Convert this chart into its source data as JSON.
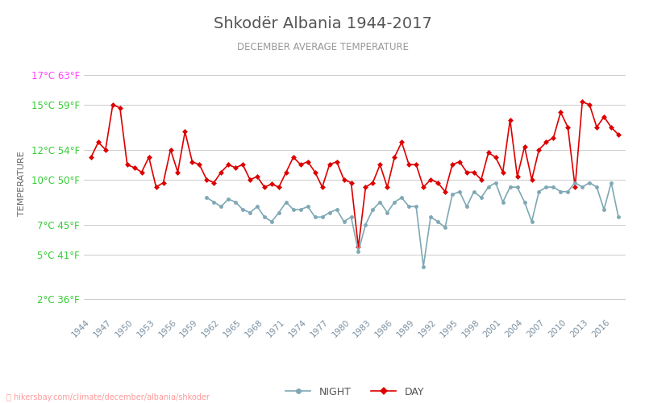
{
  "title": "Shkodër Albania 1944-2017",
  "subtitle": "DECEMBER AVERAGE TEMPERATURE",
  "xlabel": "",
  "ylabel": "TEMPERATURE",
  "watermark": "hikersbay.com/climate/december/albania/shkoder",
  "legend_night": "NIGHT",
  "legend_day": "DAY",
  "years": [
    1944,
    1945,
    1946,
    1947,
    1948,
    1949,
    1950,
    1951,
    1952,
    1953,
    1954,
    1955,
    1956,
    1957,
    1958,
    1959,
    1960,
    1961,
    1962,
    1963,
    1964,
    1965,
    1966,
    1967,
    1968,
    1969,
    1970,
    1971,
    1972,
    1973,
    1974,
    1975,
    1976,
    1977,
    1978,
    1979,
    1980,
    1981,
    1982,
    1983,
    1984,
    1985,
    1986,
    1987,
    1988,
    1989,
    1990,
    1991,
    1992,
    1993,
    1994,
    1995,
    1996,
    1997,
    1998,
    1999,
    2000,
    2001,
    2002,
    2003,
    2004,
    2005,
    2006,
    2007,
    2008,
    2009,
    2010,
    2011,
    2012,
    2013,
    2014,
    2015,
    2016,
    2017
  ],
  "day": [
    11.5,
    12.5,
    12.0,
    15.0,
    14.8,
    11.0,
    10.8,
    10.5,
    11.5,
    9.5,
    9.8,
    12.0,
    10.5,
    13.2,
    11.2,
    11.0,
    10.0,
    9.8,
    10.5,
    11.0,
    10.8,
    11.0,
    10.0,
    10.2,
    9.5,
    9.7,
    9.5,
    10.5,
    11.5,
    11.0,
    11.2,
    10.5,
    9.5,
    11.0,
    11.2,
    10.0,
    9.8,
    5.5,
    9.5,
    9.8,
    11.0,
    9.5,
    11.5,
    12.5,
    11.0,
    11.0,
    9.5,
    10.0,
    9.8,
    9.2,
    11.0,
    11.2,
    10.5,
    10.5,
    10.0,
    11.8,
    11.5,
    10.5,
    14.0,
    10.2,
    12.2,
    10.0,
    12.0,
    12.5,
    12.8,
    14.5,
    13.5,
    9.5,
    15.2,
    15.0,
    13.5,
    14.2,
    13.5,
    13.0
  ],
  "night": [
    null,
    null,
    null,
    null,
    null,
    null,
    null,
    null,
    null,
    null,
    null,
    null,
    null,
    null,
    null,
    null,
    8.8,
    8.5,
    8.2,
    8.7,
    8.5,
    8.0,
    7.8,
    8.2,
    7.5,
    7.2,
    7.8,
    8.5,
    8.0,
    8.0,
    8.2,
    7.5,
    7.5,
    7.8,
    8.0,
    7.2,
    7.5,
    5.2,
    7.0,
    8.0,
    8.5,
    7.8,
    8.5,
    8.8,
    8.2,
    8.2,
    4.2,
    7.5,
    7.2,
    6.8,
    9.0,
    9.2,
    8.2,
    9.2,
    8.8,
    9.5,
    9.8,
    8.5,
    9.5,
    9.5,
    8.5,
    7.2,
    9.2,
    9.5,
    9.5,
    9.2,
    9.2,
    9.8,
    9.5,
    9.8,
    9.5,
    8.0,
    9.8,
    7.5
  ],
  "yticks_celsius": [
    2,
    5,
    7,
    10,
    12,
    15,
    17
  ],
  "yticks_fahrenheit": [
    36,
    41,
    45,
    50,
    54,
    59,
    63
  ],
  "ymin": 1.0,
  "ymax": 18.5,
  "day_color": "#dd0000",
  "night_color": "#7fa8b5",
  "title_color": "#555555",
  "subtitle_color": "#999999",
  "ylabel_color": "#666666",
  "tick_label_color": "#33cc33",
  "top_tick_color": "#ff44ff",
  "grid_color": "#cccccc",
  "background_color": "#ffffff",
  "watermark_color": "#ff9999"
}
